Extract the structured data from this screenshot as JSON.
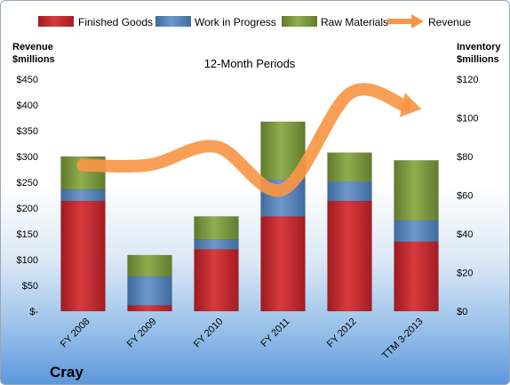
{
  "chart_data": {
    "type": "bar",
    "stacked": true,
    "title": "12-Month Periods",
    "company": "Cray",
    "categories": [
      "FY 2008",
      "FY 2009",
      "FY 2010",
      "FY 2011",
      "FY 2012",
      "TTM 3-2013"
    ],
    "left_axis": {
      "label_line1": "Revenue",
      "label_line2": "$millions",
      "range": [
        0,
        450
      ],
      "ticks": [
        "$-",
        "$50",
        "$100",
        "$150",
        "$200",
        "$250",
        "$300",
        "$350",
        "$400",
        "$450"
      ]
    },
    "right_axis": {
      "label_line1": "Inventory",
      "label_line2": "$millions",
      "range": [
        0,
        120
      ],
      "ticks": [
        "$0",
        "$20",
        "$40",
        "$60",
        "$80",
        "$100",
        "$120"
      ]
    },
    "series": [
      {
        "name": "Finished Goods",
        "axis": "right",
        "color": "#c0272d",
        "values": [
          57,
          3,
          32,
          49,
          57,
          36
        ]
      },
      {
        "name": "Work in Progress",
        "axis": "right",
        "color": "#4f81bd",
        "values": [
          6,
          15,
          5,
          19,
          10,
          11
        ]
      },
      {
        "name": "Raw Materials",
        "axis": "right",
        "color": "#77933c",
        "values": [
          17,
          11,
          12,
          30,
          15,
          31
        ]
      },
      {
        "name": "Revenue",
        "axis": "left",
        "type": "line",
        "color": "#f79646",
        "values": [
          283,
          284,
          319,
          236,
          422,
          394
        ]
      }
    ],
    "legend_position": "top",
    "grid": false
  }
}
